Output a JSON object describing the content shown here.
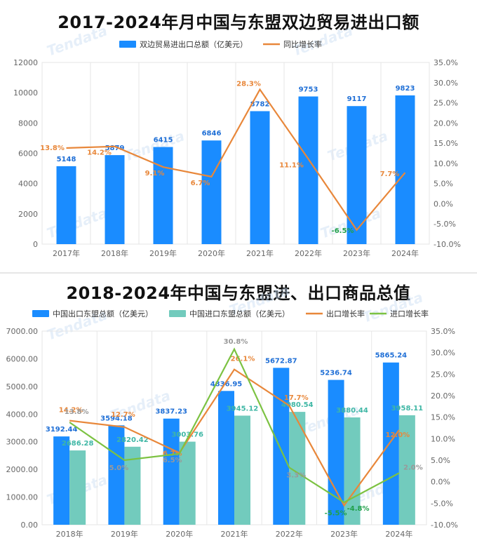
{
  "colors": {
    "bar_blue": "#1a8cff",
    "bar_teal": "#72cbbd",
    "line_orange": "#e8873a",
    "line_green": "#7cc242",
    "negative_label": "#21a04a",
    "axis_text": "#666666",
    "grid": "#e6e6e6"
  },
  "watermark": "Tendata",
  "chart_data": [
    {
      "type": "bar",
      "title": "2017-2024年月中国与东盟双边贸易进出口额",
      "categories": [
        "2017年",
        "2018年",
        "2019年",
        "2020年",
        "2021年",
        "2022年",
        "2023年",
        "2024年"
      ],
      "series": [
        {
          "name": "双边贸易进出口总额（亿美元）",
          "type": "bar",
          "axis": "left",
          "values": [
            5148,
            5879,
            6415,
            6846,
            8782,
            9753,
            9117,
            9823
          ],
          "labels": [
            "5148",
            "5879",
            "6415",
            "6846",
            "8782",
            "9753",
            "9117",
            "9823"
          ]
        },
        {
          "name": "同比增长率",
          "type": "line",
          "axis": "right",
          "values": [
            13.8,
            14.2,
            9.1,
            6.7,
            28.3,
            11.1,
            -6.5,
            7.7
          ],
          "labels": [
            "13.8%",
            "14.2%",
            "9.1%",
            "6.7%",
            "28.3%",
            "11.1%",
            "-6.5%",
            "7.7%"
          ]
        }
      ],
      "ylim": [
        0,
        12000
      ],
      "yticks": [
        "0",
        "2000",
        "4000",
        "6000",
        "8000",
        "10000",
        "12000"
      ],
      "y2lim": [
        -10,
        35
      ],
      "y2ticks": [
        "-10.0%",
        "-5.0%",
        "0.0%",
        "5.0%",
        "10.0%",
        "15.0%",
        "20.0%",
        "25.0%",
        "30.0%",
        "35.0%"
      ],
      "legend": "top-center",
      "grid": "vertical"
    },
    {
      "type": "bar",
      "title": "2018-2024年中国与东盟进、出口商品总值",
      "categories": [
        "2018年",
        "2019年",
        "2020年",
        "2021年",
        "2022年",
        "2023年",
        "2024年"
      ],
      "series": [
        {
          "name": "中国出口东盟总额（亿美元）",
          "type": "bar",
          "axis": "left",
          "values": [
            3192.44,
            3594.18,
            3837.23,
            4836.95,
            5672.87,
            5236.74,
            5865.24
          ],
          "labels": [
            "3192.44",
            "3594.18",
            "3837.23",
            "4836.95",
            "5672.87",
            "5236.74",
            "5865.24"
          ]
        },
        {
          "name": "中国进口东盟总额（亿美元）",
          "type": "bar",
          "axis": "left",
          "values": [
            2686.28,
            2820.42,
            3003.76,
            3945.12,
            4080.54,
            3880.44,
            3958.11
          ],
          "labels": [
            "2686.28",
            "2820.42",
            "3003.76",
            "3945.12",
            "4080.54",
            "3880.44",
            "3958.11"
          ]
        },
        {
          "name": "出口增长率",
          "type": "line",
          "axis": "right",
          "values": [
            14.2,
            12.7,
            6.7,
            26.1,
            17.7,
            -5.5,
            12.0
          ],
          "labels": [
            "14.2%",
            "12.7%",
            "6.7%",
            "26.1%",
            "17.7%",
            "-5.5%",
            "12.0%"
          ]
        },
        {
          "name": "进口增长率",
          "type": "line",
          "axis": "right",
          "values": [
            13.8,
            5.0,
            6.5,
            30.8,
            3.3,
            -4.8,
            2.0
          ],
          "labels": [
            "13.8%",
            "5.0%",
            "6.5%",
            "30.8%",
            "3.3%",
            "-4.8%",
            "2.0%"
          ]
        }
      ],
      "ylim": [
        0,
        7000
      ],
      "yticks": [
        "0.00",
        "1000.00",
        "2000.00",
        "3000.00",
        "4000.00",
        "5000.00",
        "6000.00",
        "7000.00"
      ],
      "y2lim": [
        -10,
        35
      ],
      "y2ticks": [
        "-10.0%",
        "-5.0%",
        "0.0%",
        "5.0%",
        "10.0%",
        "15.0%",
        "20.0%",
        "25.0%",
        "30.0%",
        "35.0%"
      ],
      "legend": "top",
      "grid": "vertical"
    }
  ]
}
